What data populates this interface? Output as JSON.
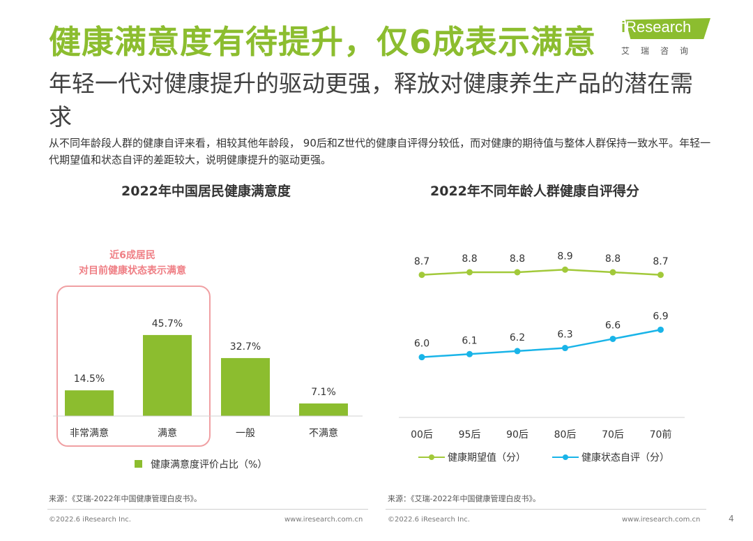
{
  "header": {
    "title": "健康满意度有待提升，仅6成表示满意",
    "subtitle": "年轻一代对健康提升的驱动更强，释放对健康养生产品的潜在需求",
    "description": "从不同年龄段人群的健康自评来看，相较其他年龄段， 90后和Z世代的健康自评得分较低，而对健康的期待值与整体人群保持一致水平。年轻一代期望值和状态自评的差距较大，说明健康提升的驱动更强。"
  },
  "logo": {
    "i": "i",
    "name": "Research",
    "sub": "艾瑞咨询"
  },
  "callout": {
    "line1": "近6成居民",
    "line2": "对目前健康状态表示满意"
  },
  "chart_data": [
    {
      "type": "bar",
      "title": "2022年中国居民健康满意度",
      "categories": [
        "非常满意",
        "满意",
        "一般",
        "不满意"
      ],
      "values": [
        14.5,
        45.7,
        32.7,
        7.1
      ],
      "value_labels": [
        "14.5%",
        "45.7%",
        "32.7%",
        "7.1%"
      ],
      "legend": "健康满意度评价占比（%）",
      "ylim": [
        0,
        50
      ],
      "color": "#8cbd2f"
    },
    {
      "type": "line",
      "title": "2022年不同年龄人群健康自评得分",
      "categories": [
        "00后",
        "95后",
        "90后",
        "80后",
        "70后",
        "70前"
      ],
      "series": [
        {
          "name": "健康期望值（分）",
          "values": [
            8.7,
            8.8,
            8.8,
            8.9,
            8.8,
            8.7
          ],
          "color": "#a2c93a"
        },
        {
          "name": "健康状态自评（分）",
          "values": [
            6.0,
            6.1,
            6.2,
            6.3,
            6.6,
            6.9
          ],
          "color": "#19b4e8"
        }
      ]
    }
  ],
  "sources": {
    "left": "来源：《艾瑞-2022年中国健康管理白皮书》。",
    "right": "来源：《艾瑞-2022年中国健康管理白皮书》。"
  },
  "footer": {
    "copyright": "©2022.6 iResearch Inc.",
    "website": "www.iresearch.com.cn",
    "page": "4"
  }
}
